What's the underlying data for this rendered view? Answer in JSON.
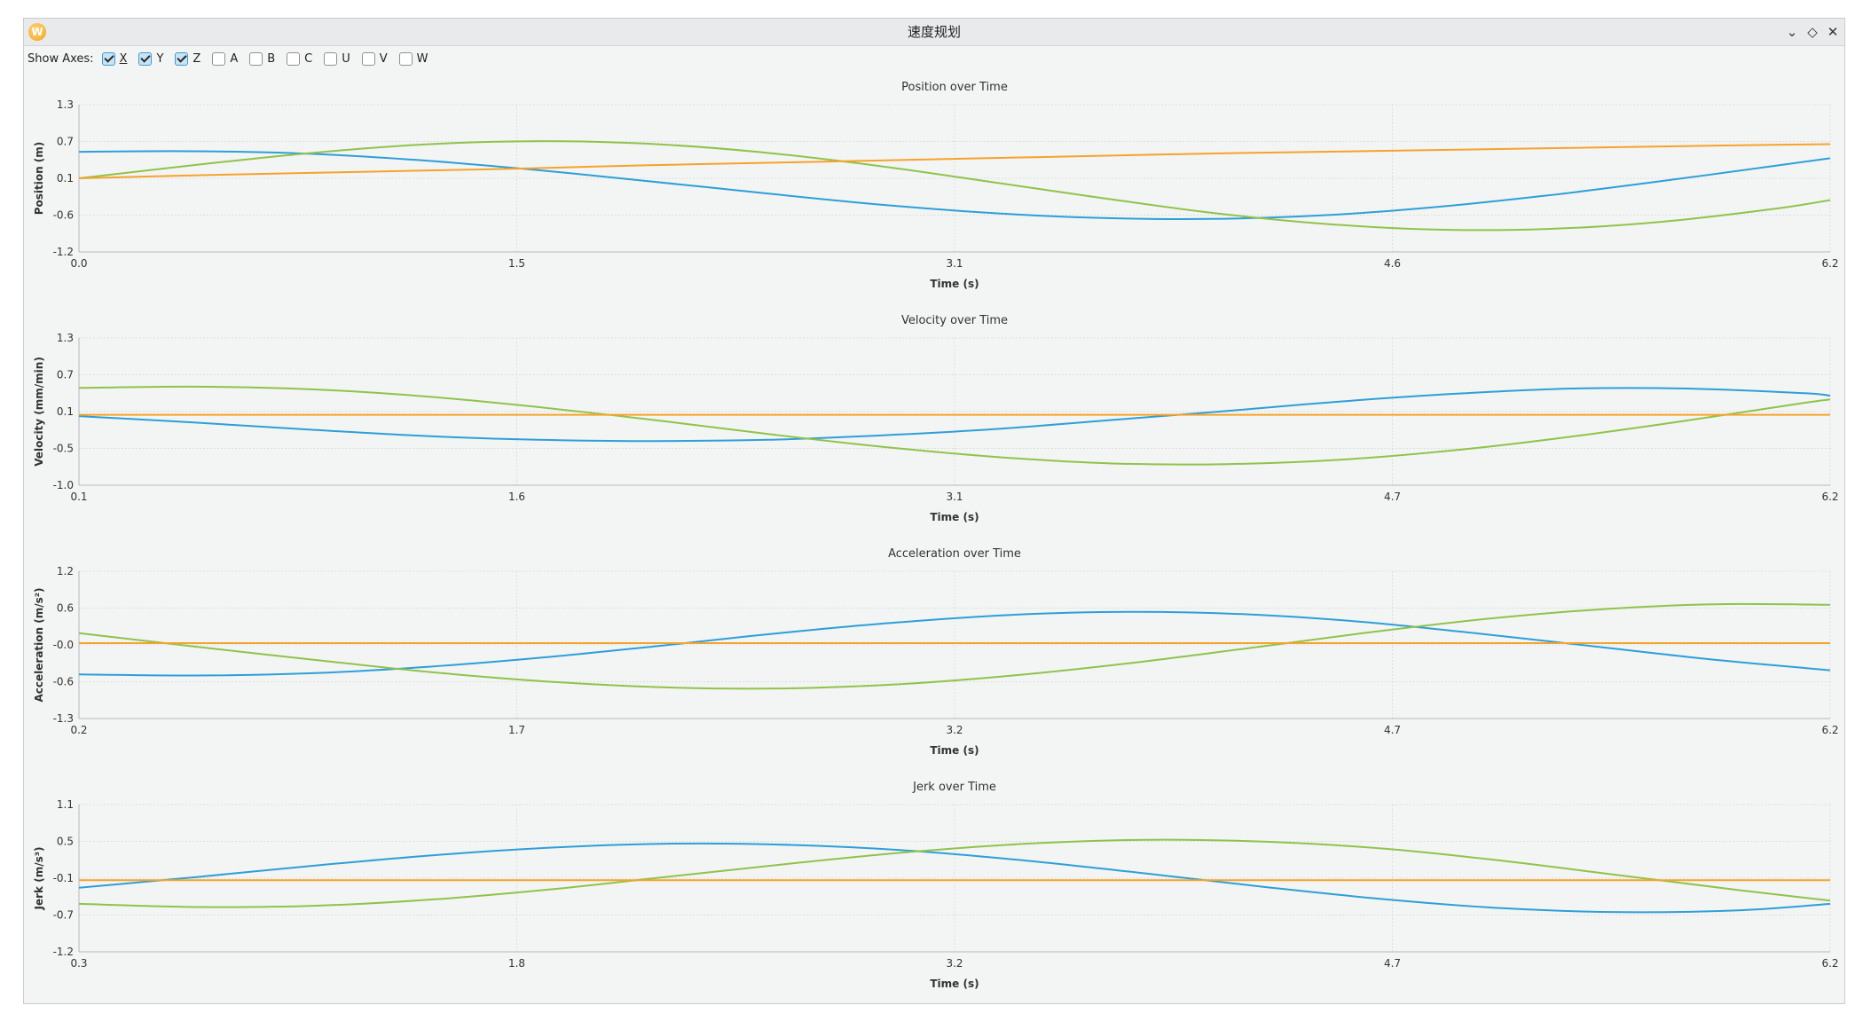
{
  "window": {
    "title": "速度规划",
    "icon_label": "W",
    "controls": [
      "⌄",
      "◇",
      "✕"
    ]
  },
  "axes_toggle": {
    "label": "Show Axes:",
    "items": [
      {
        "label": "X",
        "checked": true
      },
      {
        "label": "Y",
        "checked": true
      },
      {
        "label": "Z",
        "checked": true
      },
      {
        "label": "A",
        "checked": false
      },
      {
        "label": "B",
        "checked": false
      },
      {
        "label": "C",
        "checked": false
      },
      {
        "label": "U",
        "checked": false
      },
      {
        "label": "V",
        "checked": false
      },
      {
        "label": "W",
        "checked": false
      }
    ]
  },
  "colors": {
    "X": "#2d9fd8",
    "Y": "#8fc34a",
    "Z": "#f5a32a"
  },
  "chart_data": [
    {
      "type": "line",
      "title": "Position over Time",
      "xlabel": "Time (s)",
      "ylabel": "Position (m)",
      "xticks": [
        "0.0",
        "1.5",
        "3.1",
        "4.6",
        "6.2"
      ],
      "yticks": [
        "1.3",
        "0.7",
        "0.1",
        "-0.6",
        "-1.2"
      ],
      "xlim": [
        0.0,
        6.2
      ],
      "ylim": [
        -1.2,
        1.3
      ],
      "grid": true,
      "x": [
        0.0,
        0.4,
        0.8,
        1.2,
        1.6,
        2.0,
        2.4,
        2.8,
        3.2,
        3.6,
        4.0,
        4.4,
        4.8,
        5.2,
        5.6,
        6.0,
        6.2
      ],
      "series": [
        {
          "values": [
            0.5,
            0.51,
            0.47,
            0.36,
            0.2,
            0.01,
            -0.19,
            -0.38,
            -0.53,
            -0.62,
            -0.64,
            -0.58,
            -0.44,
            -0.24,
            0.0,
            0.26,
            0.39
          ]
        },
        {
          "values": [
            0.05,
            0.27,
            0.47,
            0.62,
            0.68,
            0.64,
            0.5,
            0.28,
            0.01,
            -0.27,
            -0.53,
            -0.72,
            -0.82,
            -0.81,
            -0.69,
            -0.47,
            -0.32
          ]
        },
        {
          "values": [
            0.05,
            0.1,
            0.14,
            0.18,
            0.22,
            0.27,
            0.31,
            0.35,
            0.39,
            0.43,
            0.47,
            0.5,
            0.53,
            0.56,
            0.59,
            0.62,
            0.63
          ]
        }
      ]
    },
    {
      "type": "line",
      "title": "Velocity over Time",
      "xlabel": "Time (s)",
      "ylabel": "Velocity (mm/min)",
      "xticks": [
        "0.1",
        "1.6",
        "3.1",
        "4.7",
        "6.2"
      ],
      "yticks": [
        "1.3",
        "0.7",
        "0.1",
        "-0.5",
        "-1.0"
      ],
      "xlim": [
        0.1,
        6.2
      ],
      "ylim": [
        -1.0,
        1.3
      ],
      "grid": true,
      "x": [
        0.1,
        0.5,
        0.9,
        1.3,
        1.7,
        2.1,
        2.5,
        2.9,
        3.3,
        3.7,
        4.1,
        4.5,
        4.9,
        5.3,
        5.7,
        6.1,
        6.2
      ],
      "series": [
        {
          "values": [
            0.08,
            -0.02,
            -0.13,
            -0.23,
            -0.29,
            -0.31,
            -0.29,
            -0.22,
            -0.12,
            0.02,
            0.16,
            0.31,
            0.43,
            0.51,
            0.51,
            0.44,
            0.4
          ]
        },
        {
          "values": [
            0.52,
            0.54,
            0.5,
            0.39,
            0.22,
            0.02,
            -0.2,
            -0.4,
            -0.56,
            -0.66,
            -0.67,
            -0.6,
            -0.45,
            -0.24,
            0.01,
            0.28,
            0.34
          ]
        },
        {
          "values": [
            0.1,
            0.1,
            0.1,
            0.1,
            0.1,
            0.1,
            0.1,
            0.1,
            0.1,
            0.1,
            0.1,
            0.1,
            0.1,
            0.1,
            0.1,
            0.1,
            0.1
          ]
        }
      ]
    },
    {
      "type": "line",
      "title": "Acceleration over Time",
      "xlabel": "Time (s)",
      "ylabel": "Acceleration (m/s²)",
      "xticks": [
        "0.2",
        "1.7",
        "3.2",
        "4.7",
        "6.2"
      ],
      "yticks": [
        "1.2",
        "0.6",
        "-0.0",
        "-0.6",
        "-1.3"
      ],
      "xlim": [
        0.2,
        6.2
      ],
      "ylim": [
        -1.3,
        1.2
      ],
      "grid": true,
      "x": [
        0.2,
        0.6,
        1.0,
        1.4,
        1.8,
        2.2,
        2.6,
        3.0,
        3.4,
        3.8,
        4.2,
        4.6,
        5.0,
        5.4,
        5.8,
        6.2
      ],
      "series": [
        {
          "values": [
            -0.55,
            -0.57,
            -0.53,
            -0.42,
            -0.26,
            -0.06,
            0.15,
            0.33,
            0.46,
            0.51,
            0.47,
            0.34,
            0.14,
            -0.08,
            -0.3,
            -0.48
          ]
        },
        {
          "values": [
            0.15,
            -0.08,
            -0.3,
            -0.51,
            -0.67,
            -0.77,
            -0.79,
            -0.72,
            -0.57,
            -0.36,
            -0.11,
            0.15,
            0.38,
            0.55,
            0.64,
            0.63
          ]
        },
        {
          "values": [
            -0.02,
            -0.02,
            -0.02,
            -0.02,
            -0.02,
            -0.02,
            -0.02,
            -0.02,
            -0.02,
            -0.02,
            -0.02,
            -0.02,
            -0.02,
            -0.02,
            -0.02,
            -0.02
          ]
        }
      ]
    },
    {
      "type": "line",
      "title": "Jerk over Time",
      "xlabel": "Time (s)",
      "ylabel": "Jerk (m/s³)",
      "xticks": [
        "0.3",
        "1.8",
        "3.2",
        "4.7",
        "6.2"
      ],
      "yticks": [
        "1.1",
        "0.5",
        "-0.1",
        "-0.7",
        "-1.2"
      ],
      "xlim": [
        0.3,
        6.2
      ],
      "ylim": [
        -1.2,
        1.1
      ],
      "grid": true,
      "x": [
        0.3,
        0.7,
        1.1,
        1.5,
        1.9,
        2.3,
        2.7,
        3.1,
        3.5,
        3.9,
        4.3,
        4.7,
        5.1,
        5.5,
        5.9,
        6.2
      ],
      "series": [
        {
          "values": [
            -0.2,
            -0.03,
            0.15,
            0.31,
            0.43,
            0.49,
            0.47,
            0.38,
            0.22,
            0.02,
            -0.19,
            -0.38,
            -0.52,
            -0.58,
            -0.55,
            -0.45
          ]
        },
        {
          "values": [
            -0.45,
            -0.5,
            -0.48,
            -0.38,
            -0.22,
            -0.02,
            0.18,
            0.36,
            0.49,
            0.55,
            0.52,
            0.41,
            0.22,
            -0.01,
            -0.24,
            -0.4
          ]
        },
        {
          "values": [
            -0.08,
            -0.08,
            -0.08,
            -0.08,
            -0.08,
            -0.08,
            -0.08,
            -0.08,
            -0.08,
            -0.08,
            -0.08,
            -0.08,
            -0.08,
            -0.08,
            -0.08,
            -0.08
          ]
        }
      ]
    }
  ]
}
